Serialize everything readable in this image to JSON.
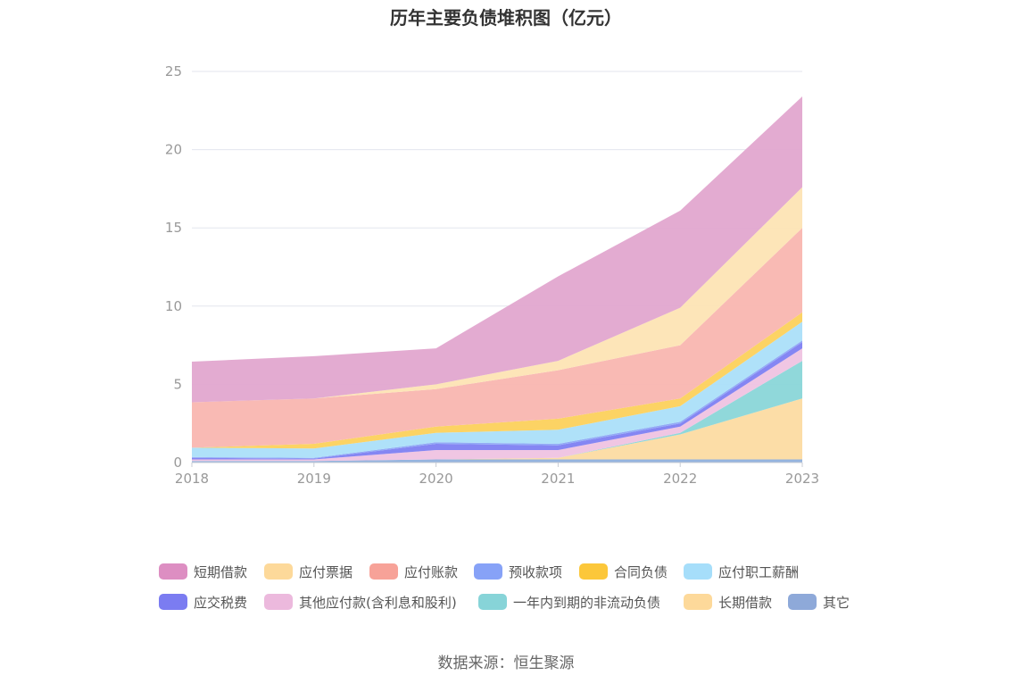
{
  "title": "历年主要负债堆积图（亿元）",
  "source": "数据来源：恒生聚源",
  "chart_data": {
    "type": "area",
    "stacked": true,
    "title": "历年主要负债堆积图（亿元）",
    "x": [
      "2018",
      "2019",
      "2020",
      "2021",
      "2022",
      "2023"
    ],
    "ylim": [
      0,
      25
    ],
    "yticks": [
      0,
      5,
      10,
      15,
      20,
      25
    ],
    "grid": true,
    "legend_position": "bottom",
    "series": [
      {
        "name": "其它",
        "color": "#8fb0dd",
        "values": [
          0.1,
          0.1,
          0.2,
          0.2,
          0.2,
          0.2
        ]
      },
      {
        "name": "长期借款",
        "color": "#fcdba2",
        "values": [
          0,
          0,
          0,
          0.1,
          1.6,
          3.9
        ]
      },
      {
        "name": "一年内到期的非流动负债",
        "color": "#8ad6d8",
        "values": [
          0,
          0,
          0,
          0,
          0.1,
          2.4
        ]
      },
      {
        "name": "其他应付款(含利息和股利)",
        "color": "#efc3e2",
        "values": [
          0.1,
          0.1,
          0.6,
          0.5,
          0.4,
          0.8
        ]
      },
      {
        "name": "应交税费",
        "color": "#7e80f2",
        "values": [
          0.1,
          0.05,
          0.4,
          0.3,
          0.2,
          0.4
        ]
      },
      {
        "name": "预收款项",
        "color": "#8da7f5",
        "values": [
          0.05,
          0.05,
          0.1,
          0.1,
          0.1,
          0.1
        ]
      },
      {
        "name": "应付职工薪酬",
        "color": "#abdff9",
        "values": [
          0.6,
          0.6,
          0.6,
          0.9,
          1.0,
          1.2
        ]
      },
      {
        "name": "合同负债",
        "color": "#fcd15c",
        "values": [
          0,
          0.3,
          0.4,
          0.7,
          0.5,
          0.6
        ]
      },
      {
        "name": "应付账款",
        "color": "#f9b6b0",
        "values": [
          2.9,
          2.9,
          2.4,
          3.1,
          3.4,
          5.4
        ]
      },
      {
        "name": "应付票据",
        "color": "#fde4b4",
        "values": [
          0,
          0,
          0.3,
          0.6,
          2.4,
          2.6
        ]
      },
      {
        "name": "短期借款",
        "color": "#e2a6cf",
        "values": [
          2.6,
          2.7,
          2.3,
          5.4,
          6.2,
          5.8
        ]
      }
    ],
    "legend_order": [
      "短期借款",
      "应付票据",
      "应付账款",
      "预收款项",
      "合同负债",
      "应付职工薪酬",
      "应交税费",
      "其他应付款(含利息和股利)",
      "一年内到期的非流动负债",
      "长期借款",
      "其它"
    ]
  },
  "legend": [
    {
      "label": "短期借款",
      "color": "#dd8ec2"
    },
    {
      "label": "应付票据",
      "color": "#fdd99a"
    },
    {
      "label": "应付账款",
      "color": "#f7a298"
    },
    {
      "label": "预收款项",
      "color": "#87a2f7"
    },
    {
      "label": "合同负债",
      "color": "#fcc73a"
    },
    {
      "label": "应付职工薪酬",
      "color": "#a6defa"
    },
    {
      "label": "应交税费",
      "color": "#7b7cf1"
    },
    {
      "label": "其他应付款(含利息和股利)",
      "color": "#ecb9dd"
    },
    {
      "label": "一年内到期的非流动负债",
      "color": "#87d4d8"
    },
    {
      "label": "长期借款",
      "color": "#fdd99a"
    },
    {
      "label": "其它",
      "color": "#8ea9d9"
    }
  ]
}
